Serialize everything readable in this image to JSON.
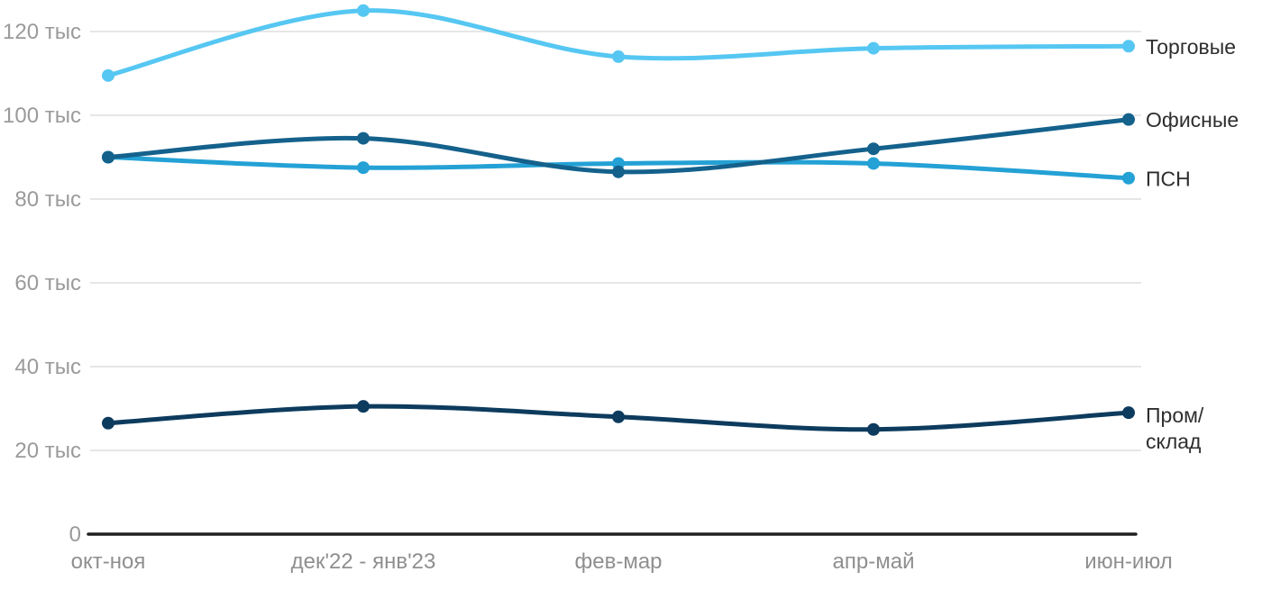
{
  "chart_data": {
    "type": "line",
    "title": "",
    "xlabel": "",
    "ylabel": "",
    "unit": "тыс",
    "categories": [
      "окт-ноя",
      "дек'22 - янв'23",
      "фев-мар",
      "апр-май",
      "июн-июл"
    ],
    "y_ticks": [
      0,
      20,
      40,
      60,
      80,
      100,
      120
    ],
    "y_tick_labels": [
      "0",
      "20 тыс",
      "40 тыс",
      "60 тыс",
      "80 тыс",
      "100 тыс",
      "120 тыс"
    ],
    "ylim": [
      0,
      128
    ],
    "grid": "horizontal",
    "legend_position": "right-end-of-lines",
    "series": [
      {
        "id": "torgovye",
        "name": "Торговые",
        "label_lines": [
          "Торговые"
        ],
        "color": "#56c7f2",
        "values": [
          109.5,
          125,
          114,
          116,
          116.5
        ]
      },
      {
        "id": "psn",
        "name": "ПСН",
        "label_lines": [
          "ПСН"
        ],
        "color": "#24a1d5",
        "values": [
          90,
          87.5,
          88.5,
          88.5,
          85
        ]
      },
      {
        "id": "ofisnye",
        "name": "Офисные",
        "label_lines": [
          "Офисные"
        ],
        "color": "#14618c",
        "values": [
          90,
          94.5,
          86.5,
          92,
          99
        ]
      },
      {
        "id": "prom-sklad",
        "name": "Пром/склад",
        "label_lines": [
          "Пром/",
          "склад"
        ],
        "color": "#0d3b5e",
        "values": [
          26.5,
          30.5,
          28,
          25,
          29
        ]
      }
    ],
    "colors": {
      "background": "#ffffff",
      "grid": "#e6e6e6",
      "axis": "#1f1f1f",
      "y_tick_label": "#9a9a9a",
      "x_tick_label": "#8f8f8f",
      "series_label": "#2e2e2e"
    }
  }
}
